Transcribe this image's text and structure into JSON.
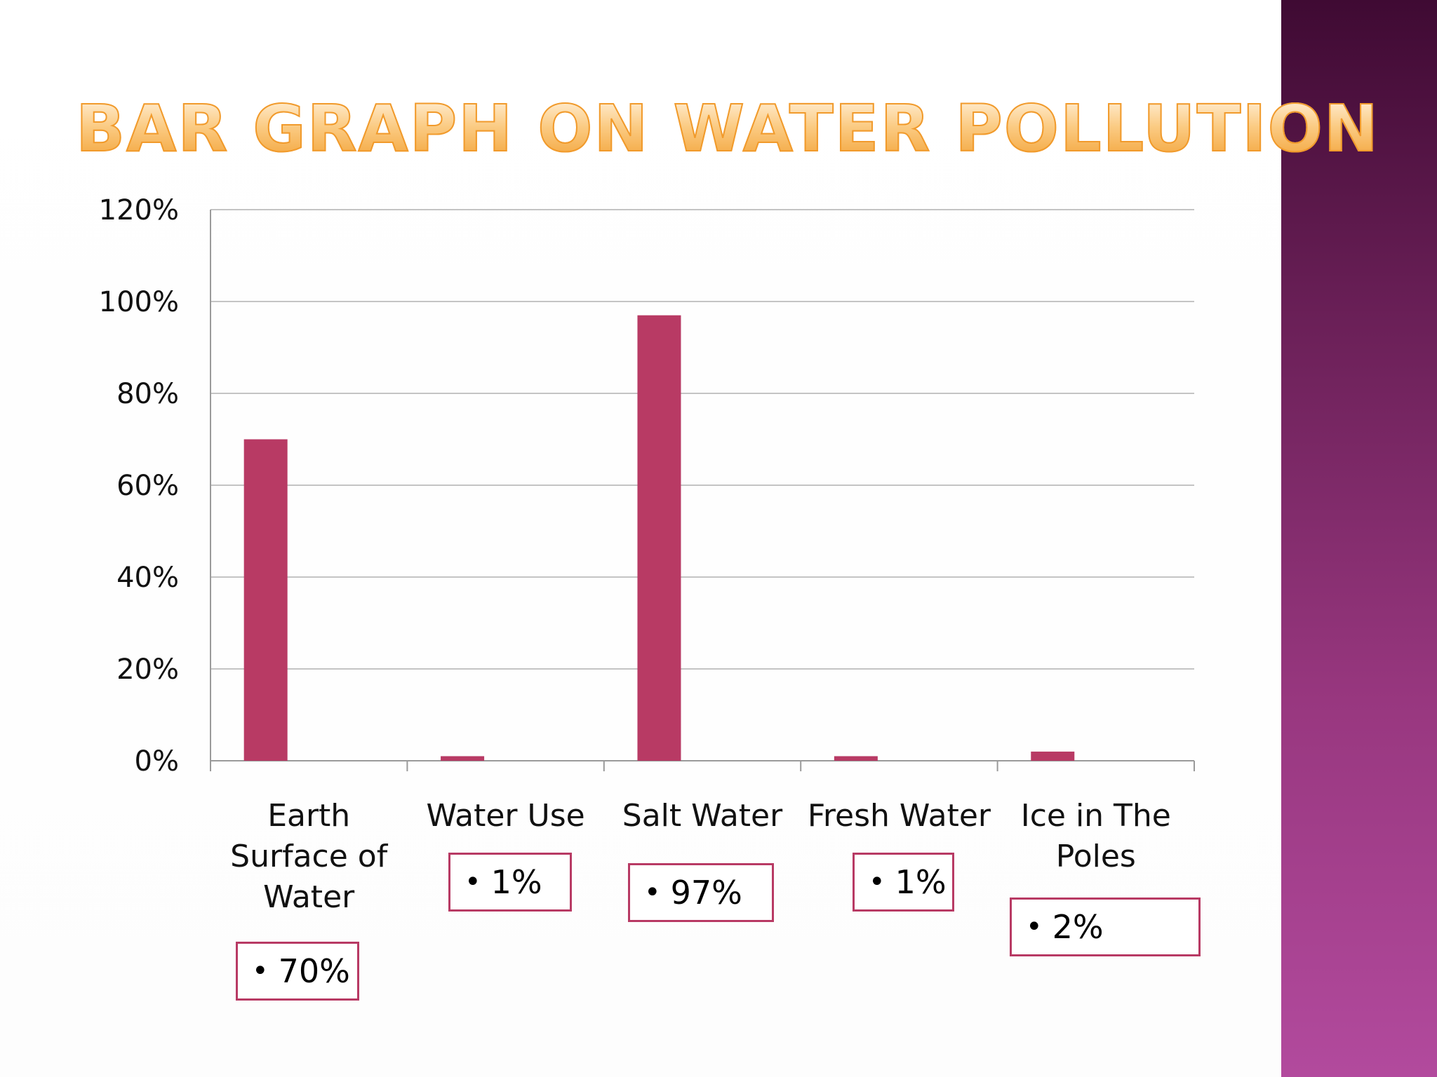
{
  "slide": {
    "title": "BAR GRAPH ON WATER POLLUTION"
  },
  "colors": {
    "bar": "#b83a64",
    "box_border": "#b83a64",
    "title": "#f6b24a",
    "sidebar_top": "#3f0a33",
    "sidebar_bottom": "#b24a9d"
  },
  "chart_data": {
    "type": "bar",
    "title": "",
    "xlabel": "",
    "ylabel": "",
    "categories": [
      "Earth Surface of Water",
      "Water Use",
      "Salt Water",
      "Fresh Water",
      "Ice in The Poles"
    ],
    "category_lines": [
      [
        "Earth",
        "Surface of",
        "Water"
      ],
      [
        "Water Use"
      ],
      [
        "Salt Water"
      ],
      [
        "Fresh Water"
      ],
      [
        "Ice in The",
        "Poles"
      ]
    ],
    "values": [
      70,
      1,
      97,
      1,
      2
    ],
    "ylim": [
      0,
      120
    ],
    "yticks": [
      0,
      20,
      40,
      60,
      80,
      100,
      120
    ],
    "ytick_labels": [
      "0%",
      "20%",
      "40%",
      "60%",
      "80%",
      "100%",
      "120%"
    ],
    "grid": true,
    "legend": "none",
    "value_labels": [
      "70%",
      "1%",
      "97%",
      "1%",
      "2%"
    ]
  }
}
